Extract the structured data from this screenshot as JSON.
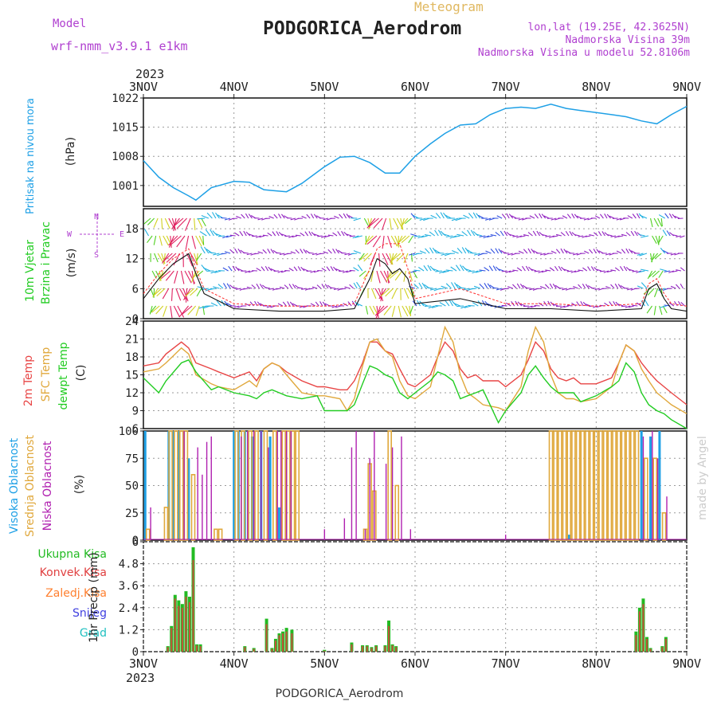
{
  "header": {
    "model_label": "Model",
    "model_name": "wrf-nmm_v3.9.1  e1km",
    "meteogram_label": "Meteogram",
    "station_title": "PODGORICA_Aerodrom",
    "lonlat": "lon,lat (19.25E, 42.3625N)",
    "elevation": "Nadmorska Visina 39m",
    "model_elevation": "Nadmorska Visina u modelu 52.8106m"
  },
  "footer": {
    "station": "PODGORICA_Aerodrom",
    "credit": "made by Angel"
  },
  "colors": {
    "pressure": "#1ea0e6",
    "temp2m": "#e84545",
    "sfc": "#e0a83c",
    "dew": "#22cc22",
    "high_cloud": "#1ea0e6",
    "mid_cloud": "#e0a83c",
    "low_cloud": "#b020b0",
    "total_precip": "#22bb22",
    "conv_precip": "#e04040",
    "frozen": "#ff8030",
    "snow": "#4040e0",
    "hail": "#20c0c0",
    "wind_label": "#22cc22",
    "compass": "#b040d0",
    "title_sub": "#b040d0"
  },
  "axes": {
    "year": "2023",
    "days": [
      "3NOV",
      "4NOV",
      "5NOV",
      "6NOV",
      "7NOV",
      "8NOV",
      "9NOV"
    ],
    "x_range_days": [
      0,
      6
    ]
  },
  "compass": {
    "n": "N",
    "s": "S",
    "e": "E",
    "w": "W"
  },
  "panels": {
    "pressure": {
      "label_line1": "Pritisak na nivou mora",
      "unit": "(hPa)",
      "ylim": [
        996,
        1022
      ],
      "ticks": [
        "1022",
        "1015",
        "1008",
        "1001"
      ],
      "tick_values": [
        1022,
        1015,
        1008,
        1001
      ],
      "chart_data": {
        "type": "line",
        "x_days": [
          0,
          0.17,
          0.33,
          0.5,
          0.58,
          0.75,
          1.0,
          1.17,
          1.33,
          1.42,
          1.58,
          1.75,
          2.0,
          2.17,
          2.33,
          2.5,
          2.67,
          2.83,
          3.0,
          3.17,
          3.33,
          3.5,
          3.67,
          3.83,
          4.0,
          4.17,
          4.33,
          4.5,
          4.67,
          4.83,
          5.0,
          5.17,
          5.33,
          5.5,
          5.67,
          5.83,
          6.0
        ],
        "values": [
          1007,
          1003,
          1000.5,
          998.5,
          997.5,
          1000.5,
          1002,
          1001.8,
          1000,
          999.8,
          999.5,
          1001.5,
          1005.5,
          1007.8,
          1008,
          1006.5,
          1004,
          1004,
          1008,
          1011,
          1013.5,
          1015.5,
          1015.8,
          1018,
          1019.5,
          1019.8,
          1019.5,
          1020.5,
          1019.5,
          1019,
          1018.5,
          1018,
          1017.5,
          1016.5,
          1015.8,
          1018,
          1020
        ]
      }
    },
    "wind": {
      "label_line1": "10m Vjetar",
      "label_line2": "Brzina i Pravac",
      "unit": "(m/s)",
      "ylim": [
        0,
        22
      ],
      "ticks": [
        "18",
        "12",
        "6",
        "0"
      ],
      "tick_values": [
        18,
        12,
        6,
        0
      ],
      "chart_data": {
        "type": "line",
        "x_days": [
          0,
          0.17,
          0.33,
          0.5,
          0.58,
          0.67,
          1.0,
          1.5,
          2.0,
          2.33,
          2.5,
          2.58,
          2.67,
          2.75,
          2.83,
          2.92,
          3.0,
          3.5,
          4.0,
          4.5,
          5.0,
          5.5,
          5.58,
          5.67,
          5.75,
          5.83,
          6.0
        ],
        "speed": [
          4,
          8,
          11,
          13,
          9,
          5,
          2,
          1.5,
          1.5,
          2,
          8,
          12,
          11,
          9,
          10,
          8,
          3,
          4,
          2,
          2,
          1.5,
          2,
          6,
          7,
          4,
          2,
          1.5
        ],
        "gust": [
          5,
          9,
          12,
          14,
          10,
          6,
          3,
          2.5,
          2.5,
          3,
          10,
          14,
          15,
          15,
          15,
          10,
          4,
          6,
          3,
          3,
          2.5,
          3,
          7,
          8,
          5,
          3,
          2.5
        ]
      }
    },
    "temperature": {
      "label_2m": "2m Temp",
      "label_sfc": "SFC Temp",
      "label_dew": "dewpt Temp",
      "unit": "(C)",
      "ylim": [
        6,
        24
      ],
      "ticks": [
        "24",
        "21",
        "18",
        "15",
        "12",
        "9",
        "6"
      ],
      "tick_values": [
        24,
        21,
        18,
        15,
        12,
        9,
        6
      ],
      "chart_data": {
        "type": "line",
        "x_days": [
          0,
          0.17,
          0.25,
          0.42,
          0.5,
          0.58,
          0.75,
          0.83,
          1.0,
          1.17,
          1.25,
          1.33,
          1.42,
          1.5,
          1.58,
          1.75,
          1.92,
          2.0,
          2.17,
          2.25,
          2.33,
          2.42,
          2.5,
          2.58,
          2.67,
          2.75,
          2.83,
          2.92,
          3.0,
          3.17,
          3.25,
          3.33,
          3.42,
          3.5,
          3.58,
          3.67,
          3.75,
          3.92,
          4.0,
          4.17,
          4.25,
          4.33,
          4.42,
          4.5,
          4.58,
          4.67,
          4.75,
          4.83,
          5.0,
          5.17,
          5.25,
          5.33,
          5.42,
          5.5,
          5.58,
          5.67,
          5.75,
          5.83,
          6.0
        ],
        "series": [
          {
            "name": "2m Temp",
            "values": [
              16.5,
              17,
              18.5,
              20.5,
              19.5,
              17,
              16,
              15.5,
              14.5,
              15.5,
              14,
              16,
              17,
              16.5,
              15.5,
              14,
              13,
              13,
              12.5,
              12.5,
              14,
              17,
              20.5,
              20.5,
              19,
              18.5,
              16,
              13.5,
              13,
              15,
              18,
              20.5,
              19,
              16,
              14.5,
              15,
              14,
              14,
              13,
              15,
              17.5,
              20.5,
              19,
              16,
              14.5,
              14,
              14.5,
              13.5,
              13.5,
              14.5,
              17,
              20,
              19,
              17,
              15.5,
              14,
              13,
              12,
              10
            ]
          },
          {
            "name": "SFC Temp",
            "values": [
              15.5,
              16,
              17,
              19.5,
              18.5,
              15,
              13.5,
              13,
              12.5,
              14,
              13,
              16,
              17,
              16.5,
              15,
              12,
              11.5,
              11.5,
              11,
              9,
              11,
              16.5,
              20.5,
              21,
              19,
              18,
              14,
              11.5,
              11,
              13,
              18,
              23,
              20.5,
              15,
              12,
              11,
              10,
              9.5,
              9,
              13,
              19,
              23,
              20.5,
              15,
              12,
              11,
              11,
              10.5,
              11,
              13,
              17,
              20,
              19,
              16,
              14,
              12,
              11,
              10,
              8.5
            ]
          },
          {
            "name": "dewpt Temp",
            "values": [
              14.5,
              12,
              14,
              17,
              17.5,
              15.5,
              12.5,
              13,
              12,
              11.5,
              11,
              12,
              12.5,
              12,
              11.5,
              11,
              11.5,
              9,
              9,
              9,
              10,
              13.5,
              16.5,
              16,
              15,
              14.5,
              12,
              11,
              12,
              14,
              15.5,
              15,
              14,
              11,
              11.5,
              12,
              12.5,
              7,
              9,
              12,
              15,
              16.5,
              14.5,
              13,
              12,
              12,
              12,
              10.5,
              11.5,
              13,
              14,
              17,
              15.5,
              12,
              10,
              9,
              8.5,
              7.5,
              6
            ]
          }
        ]
      }
    },
    "clouds": {
      "label_high": "Visoka Oblacnost",
      "label_mid": "Srednja Oblacnost",
      "label_low": "Niska Oblacnost",
      "unit": "(%)",
      "ylim": [
        0,
        100
      ],
      "ticks": [
        "100",
        "75",
        "50",
        "25",
        "0"
      ],
      "tick_values": [
        100,
        75,
        50,
        25,
        0
      ],
      "chart_data": {
        "type": "bar",
        "series": [
          {
            "name": "Visoka Oblacnost",
            "x_days": [
              0.02,
              0.28,
              0.33,
              0.39,
              0.5,
              1.0,
              1.05,
              1.12,
              1.2,
              1.3,
              1.4,
              1.5,
              4.7,
              5.5,
              5.6,
              5.7
            ],
            "values": [
              100,
              100,
              100,
              100,
              75,
              100,
              100,
              100,
              95,
              100,
              95,
              30,
              5,
              100,
              95,
              100
            ]
          },
          {
            "name": "Srednja Oblacnost",
            "x_days": [
              0.05,
              0.25,
              0.3,
              0.36,
              0.42,
              0.47,
              0.55,
              0.8,
              0.85,
              1.03,
              1.1,
              1.18,
              1.25,
              1.35,
              1.45,
              1.55,
              1.6,
              1.65,
              1.7,
              2.45,
              2.5,
              2.55,
              2.72,
              2.8,
              4.5,
              4.55,
              4.6,
              4.65,
              4.7,
              4.75,
              4.8,
              4.85,
              4.9,
              4.95,
              5.0,
              5.05,
              5.1,
              5.15,
              5.2,
              5.25,
              5.3,
              5.35,
              5.4,
              5.45,
              5.55,
              5.65,
              5.75
            ],
            "values": [
              10,
              30,
              100,
              100,
              100,
              100,
              60,
              10,
              10,
              100,
              100,
              100,
              100,
              100,
              100,
              100,
              100,
              100,
              100,
              10,
              70,
              45,
              100,
              50,
              100,
              100,
              100,
              100,
              100,
              100,
              100,
              100,
              100,
              100,
              100,
              100,
              100,
              100,
              100,
              100,
              100,
              100,
              100,
              100,
              75,
              75,
              25
            ]
          },
          {
            "name": "Niska Oblacnost",
            "x_days": [
              0.08,
              0.45,
              0.6,
              0.65,
              0.7,
              0.75,
              1.08,
              1.15,
              1.22,
              1.3,
              1.38,
              1.48,
              1.52,
              1.58,
              1.63,
              2.0,
              2.22,
              2.3,
              2.35,
              2.45,
              2.5,
              2.55,
              2.68,
              2.75,
              2.85,
              2.95,
              4.0,
              5.52,
              5.62,
              5.68,
              5.78
            ],
            "values": [
              30,
              100,
              85,
              60,
              90,
              95,
              95,
              100,
              100,
              100,
              85,
              100,
              100,
              100,
              100,
              10,
              20,
              85,
              100,
              10,
              75,
              100,
              70,
              85,
              95,
              10,
              5,
              95,
              100,
              75,
              40
            ]
          }
        ]
      }
    },
    "precip": {
      "label_total": "Ukupna Kisa",
      "label_conv": "Konvek.Kisa",
      "label_frozen": "Zaledj.Kisa",
      "label_snow": "Snijeg",
      "label_hail": "Grad",
      "label_axis": "1hr Precip (mm)",
      "ylim": [
        0,
        6
      ],
      "ticks": [
        "6",
        "4.8",
        "3.6",
        "2.4",
        "1.2",
        "0"
      ],
      "tick_values": [
        6,
        4.8,
        3.6,
        2.4,
        1.2,
        0
      ],
      "chart_data": {
        "type": "bar",
        "x_days": [
          0.27,
          0.31,
          0.35,
          0.39,
          0.43,
          0.47,
          0.51,
          0.55,
          0.59,
          0.63,
          1.12,
          1.22,
          1.36,
          1.42,
          1.46,
          1.5,
          1.54,
          1.58,
          1.64,
          2.0,
          2.3,
          2.42,
          2.47,
          2.52,
          2.57,
          2.67,
          2.71,
          2.75,
          2.79,
          5.44,
          5.48,
          5.52,
          5.56,
          5.6,
          5.73,
          5.77
        ],
        "series": [
          {
            "name": "Ukupna Kisa",
            "values": [
              0.3,
              1.4,
              3.1,
              2.8,
              2.6,
              3.3,
              3.0,
              5.7,
              0.4,
              0.4,
              0.3,
              0.2,
              1.8,
              0.2,
              0.7,
              1.0,
              1.1,
              1.3,
              1.2,
              0.1,
              0.5,
              0.35,
              0.35,
              0.25,
              0.35,
              0.35,
              1.7,
              0.4,
              0.3,
              1.1,
              2.4,
              2.9,
              0.8,
              0.2,
              0.3,
              0.8
            ]
          },
          {
            "name": "Konvek.Kisa",
            "values": [
              0.25,
              1.3,
              2.9,
              2.5,
              2.4,
              3.0,
              2.7,
              5.0,
              0.35,
              0.3,
              0.25,
              0.15,
              1.5,
              0.15,
              0.6,
              0.9,
              1.0,
              1.1,
              1.0,
              0.05,
              0.4,
              0.3,
              0.3,
              0.2,
              0.3,
              0.3,
              1.4,
              0.35,
              0.25,
              0.9,
              2.2,
              2.6,
              0.7,
              0.15,
              0.25,
              0.7
            ]
          }
        ]
      }
    }
  }
}
